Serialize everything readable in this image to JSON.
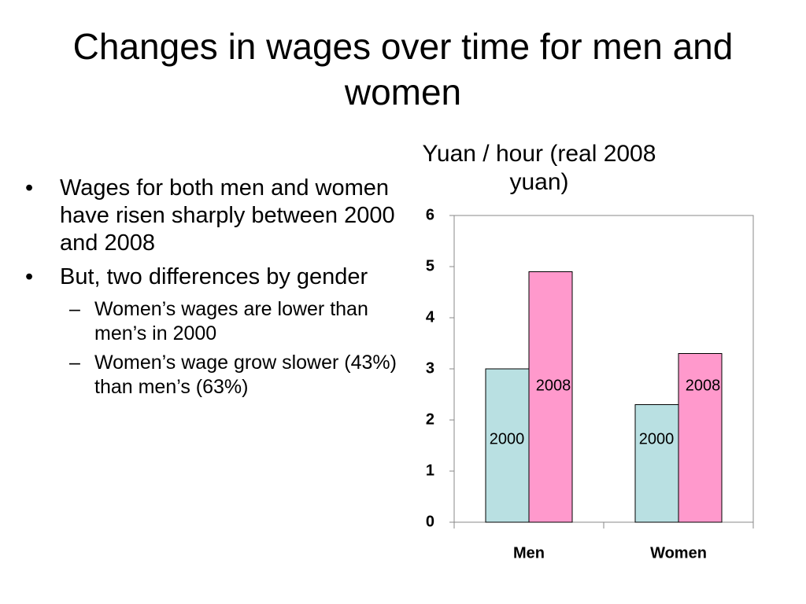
{
  "slide": {
    "title": "Changes in wages over time for men and women",
    "bullets": [
      {
        "text": "Wages for both men and women have risen sharply between 2000 and 2008",
        "sub": []
      },
      {
        "text": "But, two differences by gender",
        "sub": [
          "Women’s wages are lower than men’s in 2000",
          "Women’s wage grow slower (43%) than men’s (63%)"
        ]
      }
    ]
  },
  "chart_data": {
    "type": "bar",
    "title": "Yuan / hour (real 2008 yuan)",
    "categories": [
      "Men",
      "Women"
    ],
    "series": [
      {
        "name": "2000",
        "color": "#b9e0e2",
        "values": [
          3.0,
          2.3
        ]
      },
      {
        "name": "2008",
        "color": "#ff99cc",
        "values": [
          4.9,
          3.3
        ]
      }
    ],
    "ylim": [
      0,
      6
    ],
    "yticks": [
      0,
      1,
      2,
      3,
      4,
      5,
      6
    ]
  }
}
